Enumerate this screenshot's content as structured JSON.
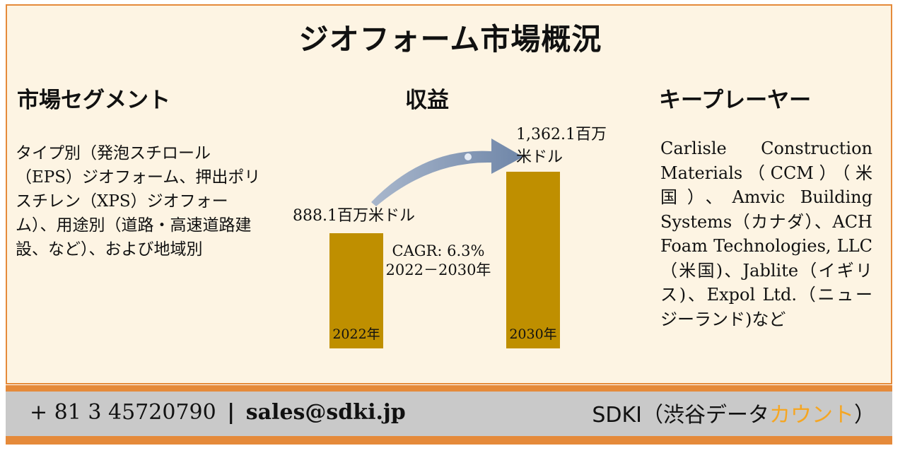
{
  "title": "ジオフォーム市場概況",
  "segments": {
    "heading": "市場セグメント",
    "text": "タイプ別（発泡スチロール（EPS）ジオフォーム、押出ポリスチレン（XPS）ジオフォーム）、用途別（道路・高速道路建設、など）、および地域別"
  },
  "revenue": {
    "heading": "収益"
  },
  "key_players": {
    "heading": "キープレーヤー",
    "text": "Carlisle Construction Materials（CCM）（米国）、Amvic Building Systems（カナダ）、ACH Foam Technologies, LLC（米国)、Jablite（イギリス)、Expol Ltd.（ニュージーランド)など"
  },
  "chart_data": {
    "type": "bar",
    "categories": [
      "2022年",
      "2030年"
    ],
    "values": [
      888.1,
      1362.1
    ],
    "value_labels": [
      "888.1百万米ドル",
      "1,362.1百万米ドル"
    ],
    "unit": "百万米ドル",
    "cagr_label": "CAGR: 6.3%",
    "cagr_period": "2022－2030年",
    "bar_color": "#bf8f00",
    "arrow_color": "#7f93b2"
  },
  "footer": {
    "phone": "+ 81 3 45720790",
    "separator": "|",
    "email": "sales@sdki.jp",
    "brand_prefix": "SDKI（渋谷データ",
    "brand_accent": "カウント",
    "brand_suffix": "）",
    "accent_color": "#f5a623"
  }
}
